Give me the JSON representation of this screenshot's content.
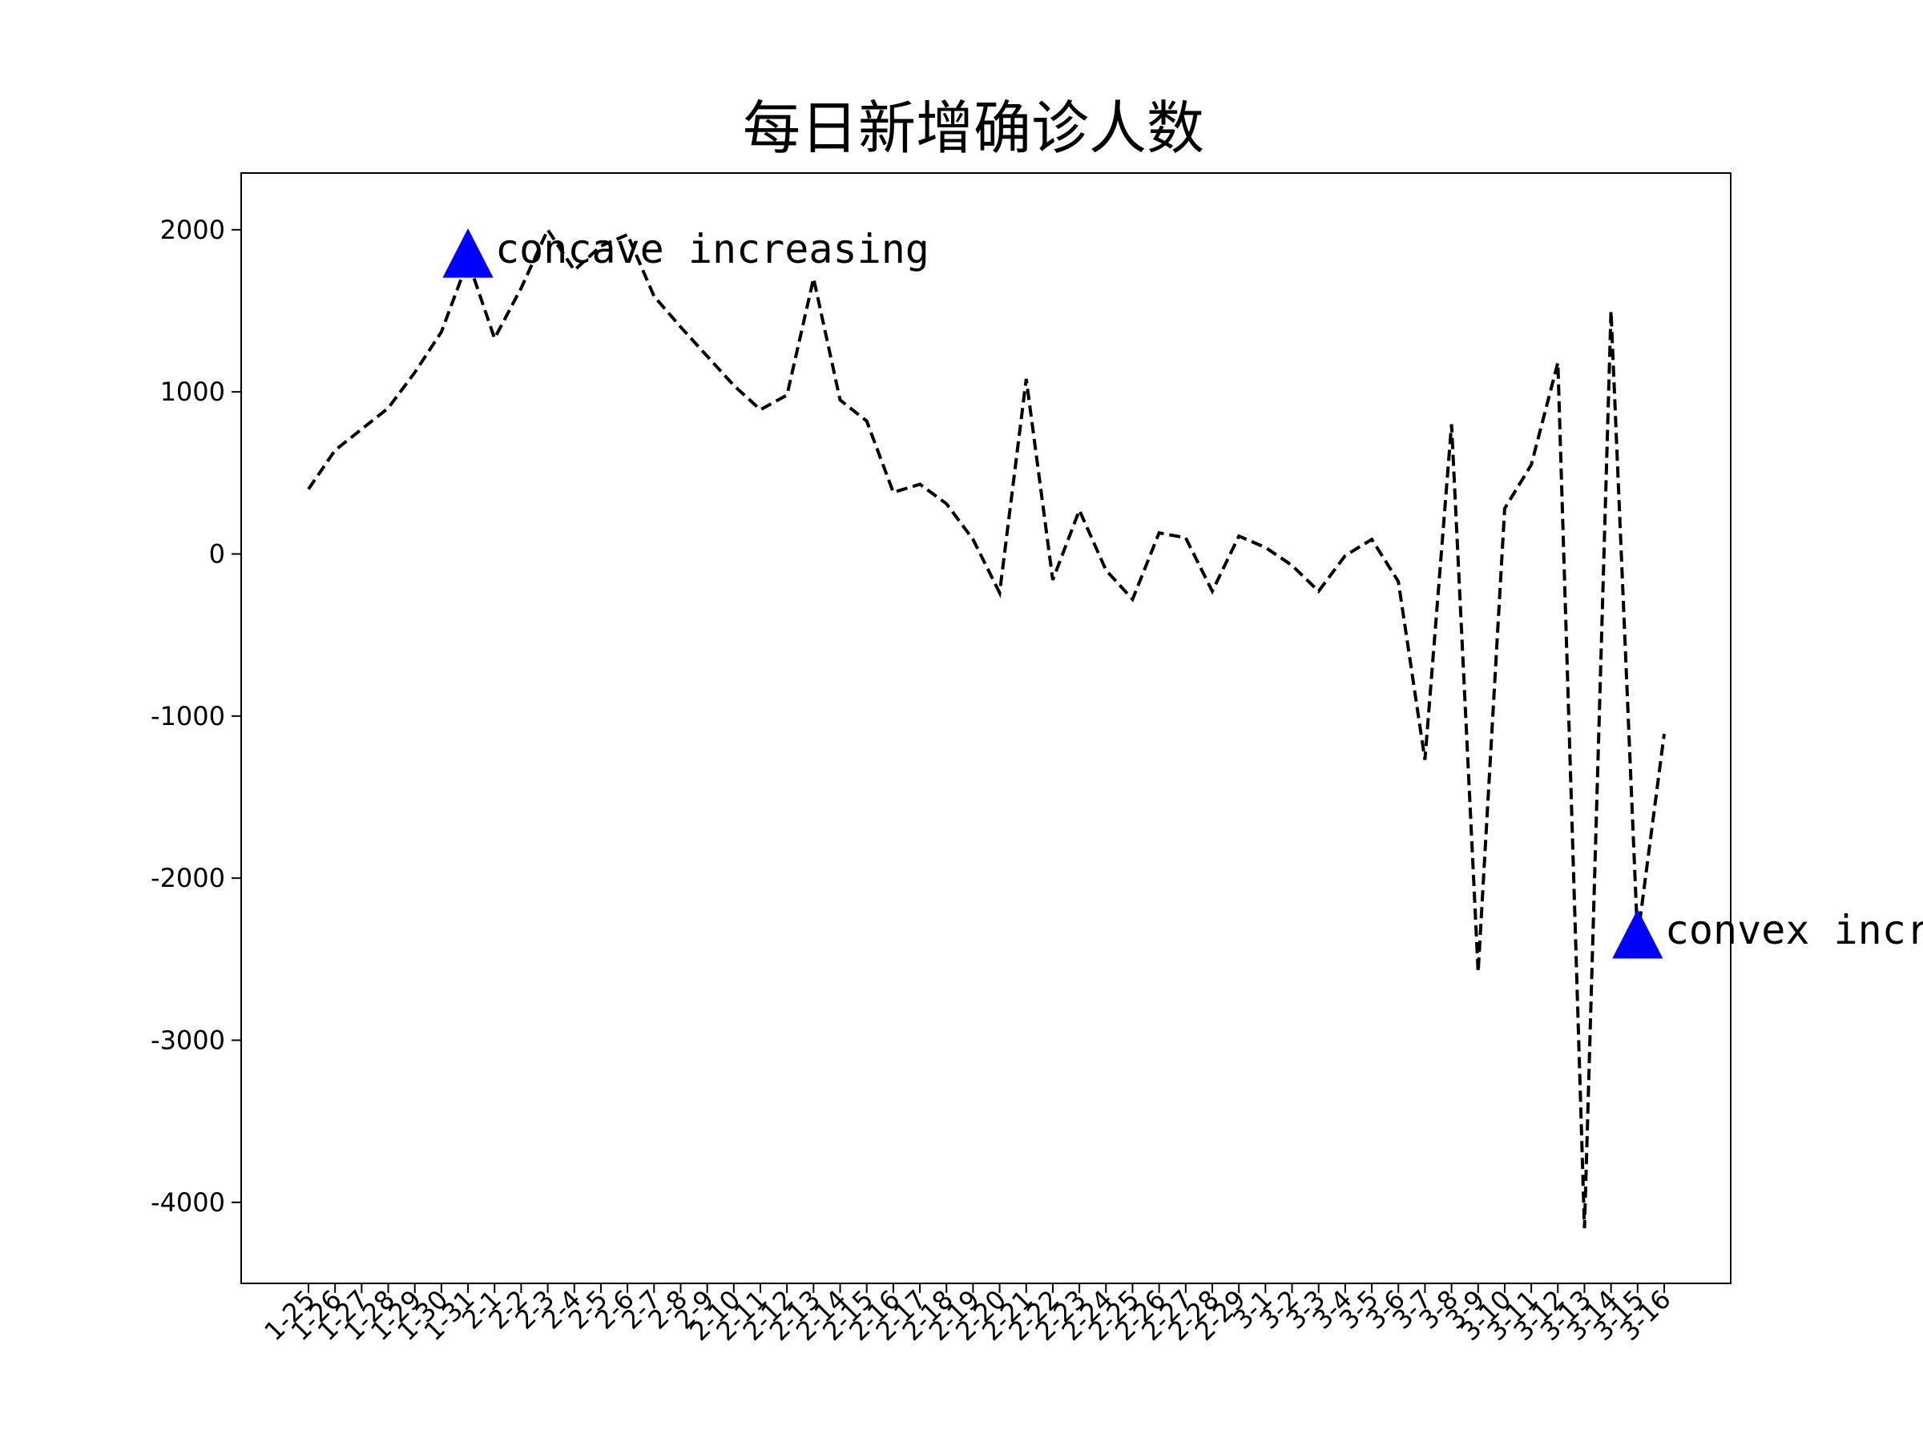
{
  "chart_data": {
    "type": "line",
    "title": "每日新增确诊人数",
    "xlabel": "",
    "ylabel": "",
    "categories": [
      "1-25",
      "1-26",
      "1-27",
      "1-28",
      "1-29",
      "1-30",
      "1-31",
      "2-1",
      "2-2",
      "2-3",
      "2-4",
      "2-5",
      "2-6",
      "2-7",
      "2-8",
      "2-9",
      "2-10",
      "2-11",
      "2-12",
      "2-13",
      "2-14",
      "2-15",
      "2-16",
      "2-17",
      "2-18",
      "2-19",
      "2-20",
      "2-21",
      "2-22",
      "2-23",
      "2-24",
      "2-25",
      "2-26",
      "2-27",
      "2-28",
      "2-29",
      "3-1",
      "3-2",
      "3-3",
      "3-4",
      "3-5",
      "3-6",
      "3-7",
      "3-8",
      "3-9",
      "3-10",
      "3-11",
      "3-12",
      "3-13",
      "3-14",
      "3-15",
      "3-16"
    ],
    "series": [
      {
        "values": [
          400,
          640,
          770,
          900,
          1120,
          1370,
          1810,
          1330,
          1640,
          2000,
          1750,
          1900,
          1970,
          1590,
          1400,
          1220,
          1040,
          890,
          980,
          1700,
          950,
          820,
          380,
          430,
          310,
          90,
          -240,
          1080,
          -160,
          270,
          -100,
          -280,
          130,
          100,
          -230,
          110,
          40,
          -70,
          -230,
          -10,
          90,
          -170,
          -1270,
          800,
          -2580,
          280,
          550,
          1180,
          -4160,
          1500,
          -2370,
          -1110
        ],
        "color": "#000000",
        "style": "dashed"
      }
    ],
    "yticks": [
      -4000,
      -3000,
      -2000,
      -1000,
      0,
      1000,
      2000
    ],
    "ylim": [
      -4500,
      2350
    ],
    "grid": false,
    "annotations": [
      {
        "text": "concave increasing",
        "category": "1-31",
        "y": 1850,
        "marker": "triangle",
        "marker_color": "#0000ff"
      },
      {
        "text": "convex increasing",
        "category": "3-15",
        "y": -2350,
        "marker": "triangle",
        "marker_color": "#0000ff"
      }
    ]
  }
}
